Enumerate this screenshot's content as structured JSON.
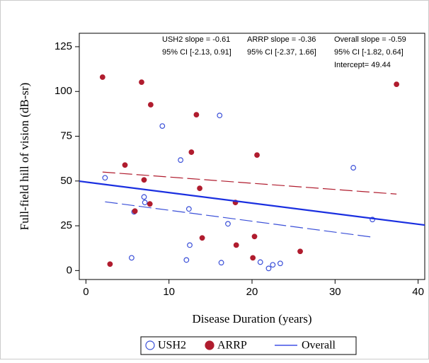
{
  "chart_data": {
    "type": "scatter",
    "xlabel": "Disease Duration (years)",
    "ylabel": "Full-field hill of vision (dB-sr)",
    "xlim": [
      -0.8,
      40.8
    ],
    "ylim": [
      -5,
      132.5
    ],
    "xticks": [
      0,
      10,
      20,
      30,
      40
    ],
    "yticks": [
      0,
      25,
      50,
      75,
      100,
      125
    ],
    "annotations": [
      "USH2 slope = -0.61",
      "95% CI [-2.13, 0.91]",
      "ARRP slope = -0.36",
      "95% CI [-2.37, 1.66]",
      "Overall slope = -0.59",
      "95% CI [-1.82, 0.64]",
      "Intercept= 49.44"
    ],
    "series": [
      {
        "name": "USH2",
        "type": "scatter",
        "color": "#3a4fd8",
        "filled": false,
        "x": [
          2.3,
          5.8,
          7.0,
          7.1,
          5.5,
          9.2,
          11.4,
          12.1,
          12.4,
          12.5,
          16.1,
          16.3,
          17.1,
          21.0,
          22.0,
          22.5,
          23.4,
          32.2,
          34.5
        ],
        "values": [
          51.8,
          32.8,
          41.1,
          38.0,
          7.1,
          80.7,
          61.7,
          5.9,
          34.4,
          14.2,
          86.6,
          4.4,
          26.1,
          4.7,
          1.2,
          3.2,
          4.0,
          57.4,
          28.5
        ],
        "fit": {
          "x": [
            2.3,
            34.6
          ],
          "values": [
            38.4,
            18.6
          ]
        }
      },
      {
        "name": "ARRP",
        "type": "scatter",
        "color": "#b01c2e",
        "filled": true,
        "x": [
          2.0,
          2.9,
          4.7,
          5.9,
          6.7,
          7.0,
          7.7,
          7.8,
          12.7,
          13.3,
          13.7,
          14.0,
          18.0,
          18.1,
          20.1,
          20.3,
          20.6,
          25.8,
          37.4
        ],
        "values": [
          108.0,
          3.6,
          58.9,
          33.2,
          105.2,
          50.6,
          37.2,
          92.6,
          66.1,
          87.0,
          45.9,
          18.2,
          38.0,
          14.2,
          7.1,
          19.0,
          64.5,
          10.7,
          104.0
        ],
        "fit": {
          "x": [
            2.0,
            37.4
          ],
          "values": [
            55.0,
            42.7
          ]
        }
      },
      {
        "name": "Overall",
        "type": "line",
        "color": "#1a2fe0",
        "x": [
          -0.8,
          40.8
        ],
        "values": [
          49.9,
          25.4
        ]
      }
    ]
  }
}
